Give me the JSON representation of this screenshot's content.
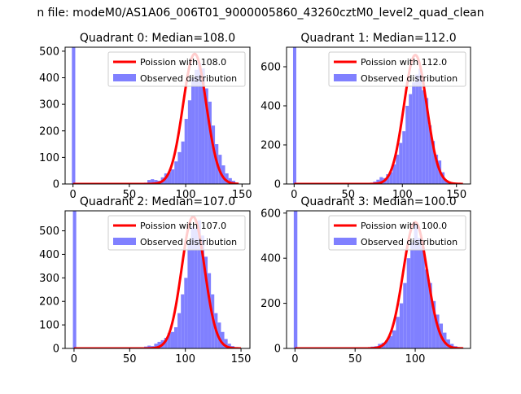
{
  "figure": {
    "suptitle": "n file: modeM0/AS1A06_006T01_9000005860_43260cztM0_level2_quad_clean",
    "colors": {
      "model": "#ff0000",
      "observed": "#8080ff",
      "axis": "#000000"
    }
  },
  "chart_data": [
    {
      "type": "bar+line",
      "title": "Quadrant 0: Median=108.0",
      "xlim": [
        -7,
        157
      ],
      "ylim": [
        0,
        515
      ],
      "xticks": [
        0,
        50,
        100,
        150
      ],
      "yticks": [
        0,
        100,
        200,
        300,
        400,
        500
      ],
      "legend": {
        "placement": "top-right",
        "entries": [
          "Poission with 108.0",
          "Observed distribution"
        ]
      },
      "series": [
        {
          "name": "Poission with 108.0",
          "kind": "line",
          "mu": 108.0,
          "peak": 490,
          "x_min": 0,
          "x_max": 147
        },
        {
          "name": "Observed distribution",
          "kind": "hist",
          "bins": [
            [
              -1,
              2,
              520
            ],
            [
              60,
              63,
              2
            ],
            [
              63,
              66,
              5
            ],
            [
              66,
              69,
              15
            ],
            [
              69,
              72,
              18
            ],
            [
              72,
              75,
              15
            ],
            [
              75,
              78,
              12
            ],
            [
              78,
              81,
              25
            ],
            [
              81,
              84,
              40
            ],
            [
              84,
              87,
              45
            ],
            [
              87,
              90,
              55
            ],
            [
              90,
              93,
              85
            ],
            [
              93,
              96,
              120
            ],
            [
              96,
              99,
              160
            ],
            [
              99,
              102,
              245
            ],
            [
              102,
              105,
              315
            ],
            [
              105,
              108,
              400
            ],
            [
              108,
              111,
              430
            ],
            [
              111,
              114,
              455
            ],
            [
              114,
              117,
              435
            ],
            [
              117,
              120,
              360
            ],
            [
              120,
              123,
              310
            ],
            [
              123,
              126,
              220
            ],
            [
              126,
              129,
              150
            ],
            [
              129,
              132,
              110
            ],
            [
              132,
              135,
              70
            ],
            [
              135,
              138,
              40
            ],
            [
              138,
              141,
              22
            ],
            [
              141,
              144,
              12
            ],
            [
              144,
              147,
              5
            ]
          ]
        }
      ]
    },
    {
      "type": "bar+line",
      "title": "Quadrant 1: Median=112.0",
      "xlim": [
        -7,
        163
      ],
      "ylim": [
        0,
        700
      ],
      "xticks": [
        0,
        50,
        100,
        150
      ],
      "yticks": [
        0,
        200,
        400,
        600
      ],
      "legend": {
        "placement": "top-right",
        "entries": [
          "Poission with 112.0",
          "Observed distribution"
        ]
      },
      "series": [
        {
          "name": "Poission with 112.0",
          "kind": "line",
          "mu": 112.0,
          "peak": 660,
          "x_min": 0,
          "x_max": 156
        },
        {
          "name": "Observed distribution",
          "kind": "hist",
          "bins": [
            [
              -1,
              2,
              700
            ],
            [
              70,
              73,
              5
            ],
            [
              73,
              76,
              12
            ],
            [
              76,
              79,
              22
            ],
            [
              79,
              82,
              35
            ],
            [
              82,
              85,
              30
            ],
            [
              85,
              88,
              50
            ],
            [
              88,
              91,
              60
            ],
            [
              91,
              94,
              100
            ],
            [
              94,
              97,
              150
            ],
            [
              97,
              100,
              210
            ],
            [
              100,
              103,
              270
            ],
            [
              103,
              106,
              400
            ],
            [
              106,
              109,
              460
            ],
            [
              109,
              112,
              520
            ],
            [
              112,
              115,
              560
            ],
            [
              115,
              118,
              590
            ],
            [
              118,
              121,
              480
            ],
            [
              121,
              124,
              440
            ],
            [
              124,
              127,
              300
            ],
            [
              127,
              130,
              220
            ],
            [
              130,
              133,
              150
            ],
            [
              133,
              136,
              120
            ],
            [
              136,
              139,
              60
            ],
            [
              139,
              142,
              20
            ],
            [
              142,
              145,
              10
            ],
            [
              145,
              148,
              5
            ]
          ]
        }
      ]
    },
    {
      "type": "bar+line",
      "title": "Quadrant 2: Median=107.0",
      "xlim": [
        -8,
        158
      ],
      "ylim": [
        0,
        585
      ],
      "xticks": [
        0,
        50,
        100,
        150
      ],
      "yticks": [
        0,
        100,
        200,
        300,
        400,
        500
      ],
      "legend": {
        "placement": "top-right",
        "entries": [
          "Poission with 107.0",
          "Observed distribution"
        ]
      },
      "series": [
        {
          "name": "Poission with 107.0",
          "kind": "line",
          "mu": 107.0,
          "peak": 560,
          "x_min": 0,
          "x_max": 150
        },
        {
          "name": "Observed distribution",
          "kind": "hist",
          "bins": [
            [
              -1,
              2,
              590
            ],
            [
              60,
              63,
              3
            ],
            [
              63,
              66,
              8
            ],
            [
              66,
              69,
              12
            ],
            [
              69,
              72,
              10
            ],
            [
              72,
              75,
              20
            ],
            [
              75,
              78,
              28
            ],
            [
              78,
              81,
              35
            ],
            [
              81,
              84,
              45
            ],
            [
              84,
              87,
              65
            ],
            [
              87,
              90,
              70
            ],
            [
              90,
              93,
              90
            ],
            [
              93,
              96,
              150
            ],
            [
              96,
              99,
              230
            ],
            [
              99,
              102,
              300
            ],
            [
              102,
              105,
              450
            ],
            [
              105,
              108,
              520
            ],
            [
              108,
              111,
              510
            ],
            [
              111,
              114,
              545
            ],
            [
              114,
              117,
              480
            ],
            [
              117,
              120,
              390
            ],
            [
              120,
              123,
              320
            ],
            [
              123,
              126,
              230
            ],
            [
              126,
              129,
              150
            ],
            [
              129,
              132,
              110
            ],
            [
              132,
              135,
              70
            ],
            [
              135,
              138,
              40
            ],
            [
              138,
              141,
              20
            ],
            [
              141,
              144,
              10
            ],
            [
              144,
              147,
              5
            ]
          ]
        }
      ]
    },
    {
      "type": "bar+line",
      "title": "Quadrant 3: Median=100.0",
      "xlim": [
        -7,
        146
      ],
      "ylim": [
        0,
        610
      ],
      "xticks": [
        0,
        50,
        100
      ],
      "yticks": [
        0,
        200,
        400,
        600
      ],
      "legend": {
        "placement": "top-right",
        "entries": [
          "Poission with 100.0",
          "Observed distribution"
        ]
      },
      "series": [
        {
          "name": "Poission with 100.0",
          "kind": "line",
          "mu": 100.0,
          "peak": 560,
          "x_min": 0,
          "x_max": 140
        },
        {
          "name": "Observed distribution",
          "kind": "hist",
          "bins": [
            [
              -1,
              2,
              620
            ],
            [
              60,
              63,
              3
            ],
            [
              63,
              66,
              8
            ],
            [
              66,
              69,
              10
            ],
            [
              69,
              72,
              20
            ],
            [
              72,
              75,
              25
            ],
            [
              75,
              78,
              35
            ],
            [
              78,
              81,
              55
            ],
            [
              81,
              84,
              80
            ],
            [
              84,
              87,
              140
            ],
            [
              87,
              90,
              200
            ],
            [
              90,
              93,
              290
            ],
            [
              93,
              96,
              400
            ],
            [
              96,
              99,
              470
            ],
            [
              99,
              102,
              560
            ],
            [
              102,
              105,
              490
            ],
            [
              105,
              108,
              450
            ],
            [
              108,
              111,
              350
            ],
            [
              111,
              114,
              290
            ],
            [
              114,
              117,
              210
            ],
            [
              117,
              120,
              150
            ],
            [
              120,
              123,
              110
            ],
            [
              123,
              126,
              70
            ],
            [
              126,
              129,
              40
            ],
            [
              129,
              132,
              20
            ],
            [
              132,
              135,
              10
            ],
            [
              135,
              138,
              5
            ]
          ]
        }
      ]
    }
  ]
}
